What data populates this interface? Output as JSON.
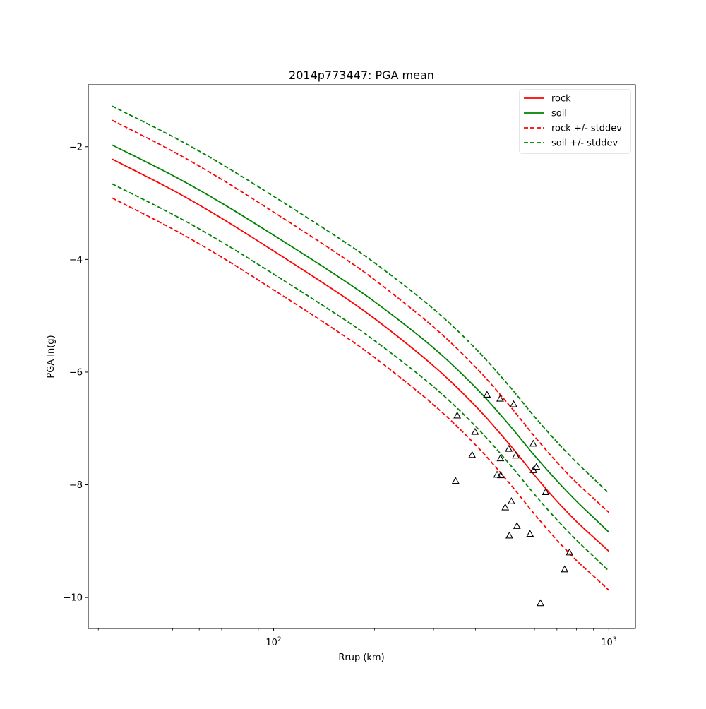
{
  "chart_data": {
    "type": "line",
    "title": "2014p773447: PGA mean",
    "xlabel": "Rrup (km)",
    "ylabel": "PGA ln(g)",
    "xscale": "log",
    "xlim": [
      28.0,
      1200.0
    ],
    "ylim": [
      -10.55,
      -0.9
    ],
    "x_ticks": [
      {
        "value": 100,
        "base": "10",
        "exp": "2"
      },
      {
        "value": 1000,
        "base": "10",
        "exp": "3"
      }
    ],
    "y_ticks": [
      {
        "value": -2,
        "label": "−2"
      },
      {
        "value": -4,
        "label": "−4"
      },
      {
        "value": -6,
        "label": "−6"
      },
      {
        "value": -8,
        "label": "−8"
      },
      {
        "value": -10,
        "label": "−10"
      }
    ],
    "grid": false,
    "legend_position": "top-right",
    "series": [
      {
        "name": "rock",
        "color": "#ff0000",
        "style": "solid",
        "x": [
          33,
          50,
          70,
          100,
          150,
          200,
          300,
          400,
          500,
          600,
          700,
          800,
          900,
          1000
        ],
        "y": [
          -2.22,
          -2.77,
          -3.27,
          -3.85,
          -4.53,
          -5.05,
          -5.89,
          -6.6,
          -7.25,
          -7.83,
          -8.29,
          -8.65,
          -8.93,
          -9.18
        ]
      },
      {
        "name": "soil",
        "color": "#008000",
        "style": "solid",
        "x": [
          33,
          50,
          70,
          100,
          150,
          200,
          300,
          400,
          500,
          600,
          700,
          800,
          900,
          1000
        ],
        "y": [
          -1.97,
          -2.51,
          -3.0,
          -3.57,
          -4.24,
          -4.75,
          -5.57,
          -6.27,
          -6.91,
          -7.48,
          -7.93,
          -8.29,
          -8.58,
          -8.84
        ]
      },
      {
        "name": "rock +/- stddev",
        "color": "#ff0000",
        "style": "dashed",
        "x": [
          33,
          50,
          70,
          100,
          150,
          200,
          300,
          400,
          500,
          600,
          700,
          800,
          900,
          1000
        ],
        "y": [
          -1.53,
          -2.08,
          -2.58,
          -3.16,
          -3.84,
          -4.36,
          -5.2,
          -5.91,
          -6.56,
          -7.14,
          -7.6,
          -7.96,
          -8.24,
          -8.49
        ]
      },
      {
        "name": "",
        "color": "#ff0000",
        "style": "dashed",
        "x": [
          33,
          50,
          70,
          100,
          150,
          200,
          300,
          400,
          500,
          600,
          700,
          800,
          900,
          1000
        ],
        "y": [
          -2.91,
          -3.46,
          -3.96,
          -4.54,
          -5.22,
          -5.74,
          -6.58,
          -7.29,
          -7.94,
          -8.52,
          -8.98,
          -9.34,
          -9.62,
          -9.87
        ]
      },
      {
        "name": "soil +/- stddev",
        "color": "#008000",
        "style": "dashed",
        "x": [
          33,
          50,
          70,
          100,
          150,
          200,
          300,
          400,
          500,
          600,
          700,
          800,
          900,
          1000
        ],
        "y": [
          -1.28,
          -1.82,
          -2.31,
          -2.88,
          -3.55,
          -4.06,
          -4.88,
          -5.58,
          -6.22,
          -6.79,
          -7.24,
          -7.6,
          -7.89,
          -8.15
        ]
      },
      {
        "name": "",
        "color": "#008000",
        "style": "dashed",
        "x": [
          33,
          50,
          70,
          100,
          150,
          200,
          300,
          400,
          500,
          600,
          700,
          800,
          900,
          1000
        ],
        "y": [
          -2.66,
          -3.2,
          -3.69,
          -4.26,
          -4.93,
          -5.44,
          -6.26,
          -6.96,
          -7.6,
          -8.17,
          -8.62,
          -8.98,
          -9.27,
          -9.53
        ]
      }
    ],
    "observations": {
      "marker": "triangle",
      "color": "#000000",
      "points": [
        {
          "x": 353,
          "y": -6.77
        },
        {
          "x": 349,
          "y": -7.93
        },
        {
          "x": 399,
          "y": -7.06
        },
        {
          "x": 391,
          "y": -7.47
        },
        {
          "x": 433,
          "y": -6.4
        },
        {
          "x": 474,
          "y": -6.47
        },
        {
          "x": 520,
          "y": -6.57
        },
        {
          "x": 464,
          "y": -7.82
        },
        {
          "x": 476,
          "y": -7.83
        },
        {
          "x": 475,
          "y": -7.53
        },
        {
          "x": 503,
          "y": -7.36
        },
        {
          "x": 528,
          "y": -7.48
        },
        {
          "x": 595,
          "y": -7.27
        },
        {
          "x": 596,
          "y": -7.74
        },
        {
          "x": 608,
          "y": -7.68
        },
        {
          "x": 648,
          "y": -8.13
        },
        {
          "x": 491,
          "y": -8.4
        },
        {
          "x": 512,
          "y": -8.29
        },
        {
          "x": 532,
          "y": -8.73
        },
        {
          "x": 505,
          "y": -8.9
        },
        {
          "x": 582,
          "y": -8.87
        },
        {
          "x": 625,
          "y": -10.1
        },
        {
          "x": 738,
          "y": -9.5
        },
        {
          "x": 763,
          "y": -9.2
        }
      ]
    }
  }
}
